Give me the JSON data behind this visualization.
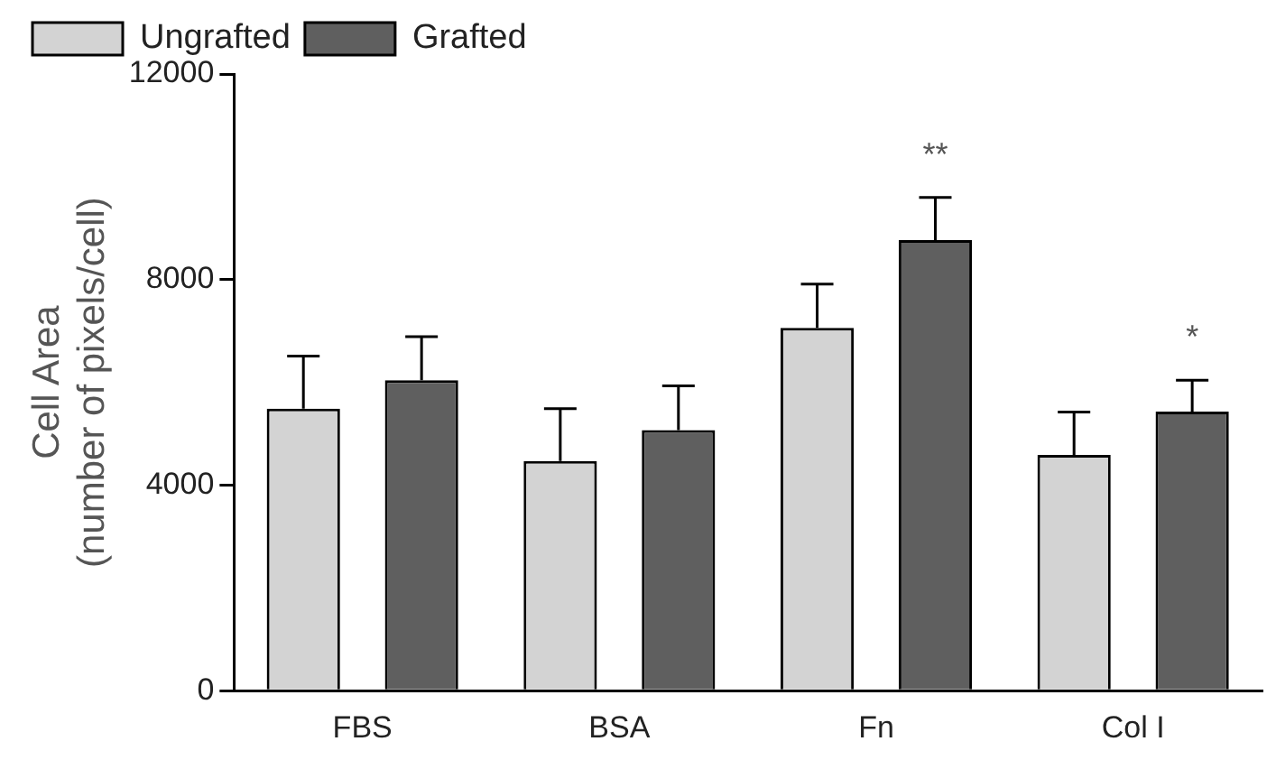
{
  "chart_data": {
    "type": "bar",
    "ylabel": "Cell Area\n(number of pixels/cell)",
    "categories": [
      "FBS",
      "BSA",
      "Fn",
      "Col I"
    ],
    "series": [
      {
        "name": "Ungrafted",
        "color": "#d3d3d3",
        "values": [
          5490,
          4470,
          7060,
          4590
        ],
        "errors": [
          [
            5490,
            6510
          ],
          [
            4470,
            5490
          ],
          [
            7060,
            7910
          ],
          [
            4590,
            5420
          ]
        ]
      },
      {
        "name": "Grafted",
        "color": "#5f5f5f",
        "values": [
          6040,
          5070,
          8770,
          5430
        ],
        "errors": [
          [
            6040,
            6890
          ],
          [
            5070,
            5930
          ],
          [
            8770,
            9600
          ],
          [
            5430,
            6040
          ]
        ],
        "value_labels": [
          null,
          null,
          "**",
          "*"
        ]
      }
    ],
    "ylim": [
      0,
      12000
    ],
    "yticks": [
      0,
      4000,
      8000,
      12000
    ],
    "grid": false,
    "legend": "top"
  }
}
